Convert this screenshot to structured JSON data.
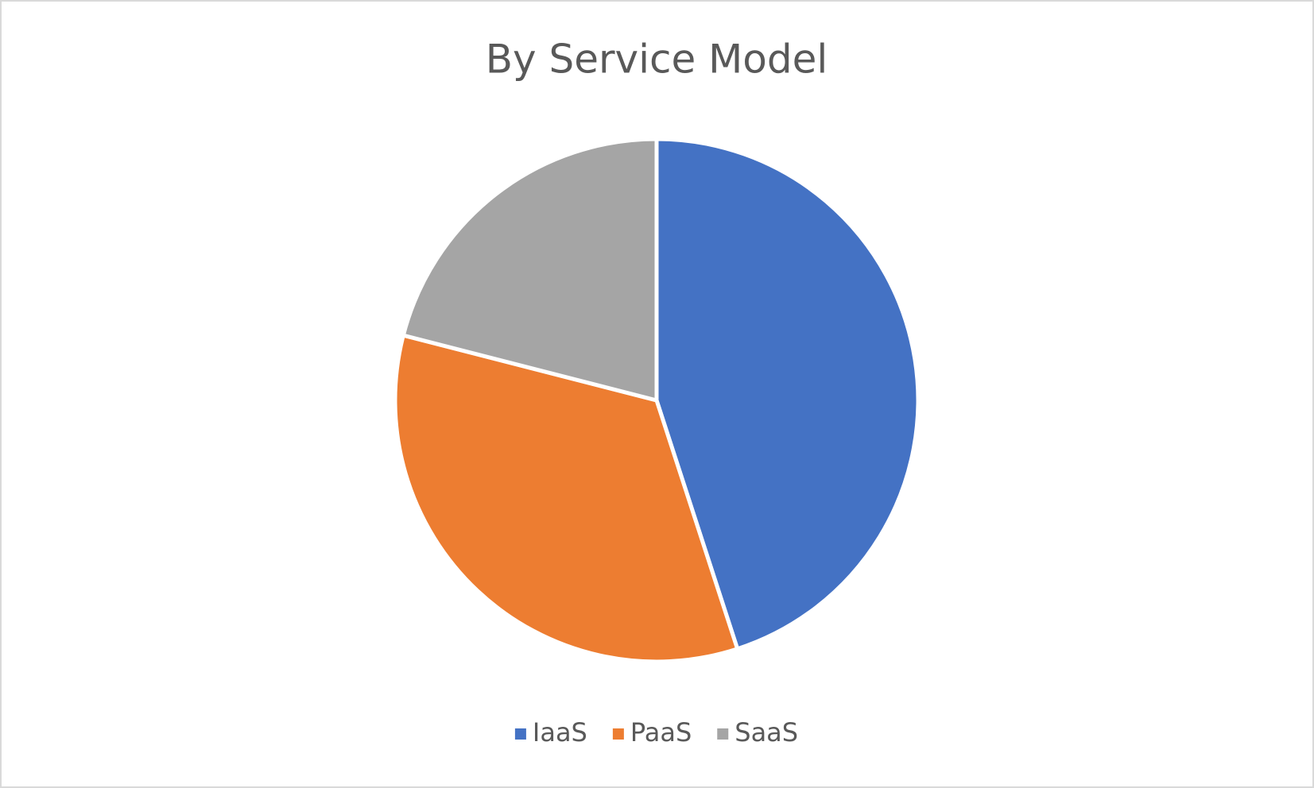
{
  "chart_data": {
    "type": "pie",
    "title": "By Service Model",
    "categories": [
      "IaaS",
      "PaaS",
      "SaaS"
    ],
    "values": [
      45,
      34,
      21
    ],
    "colors": [
      "#4472c4",
      "#ed7d31",
      "#a5a5a5"
    ],
    "legend": "bottom"
  }
}
